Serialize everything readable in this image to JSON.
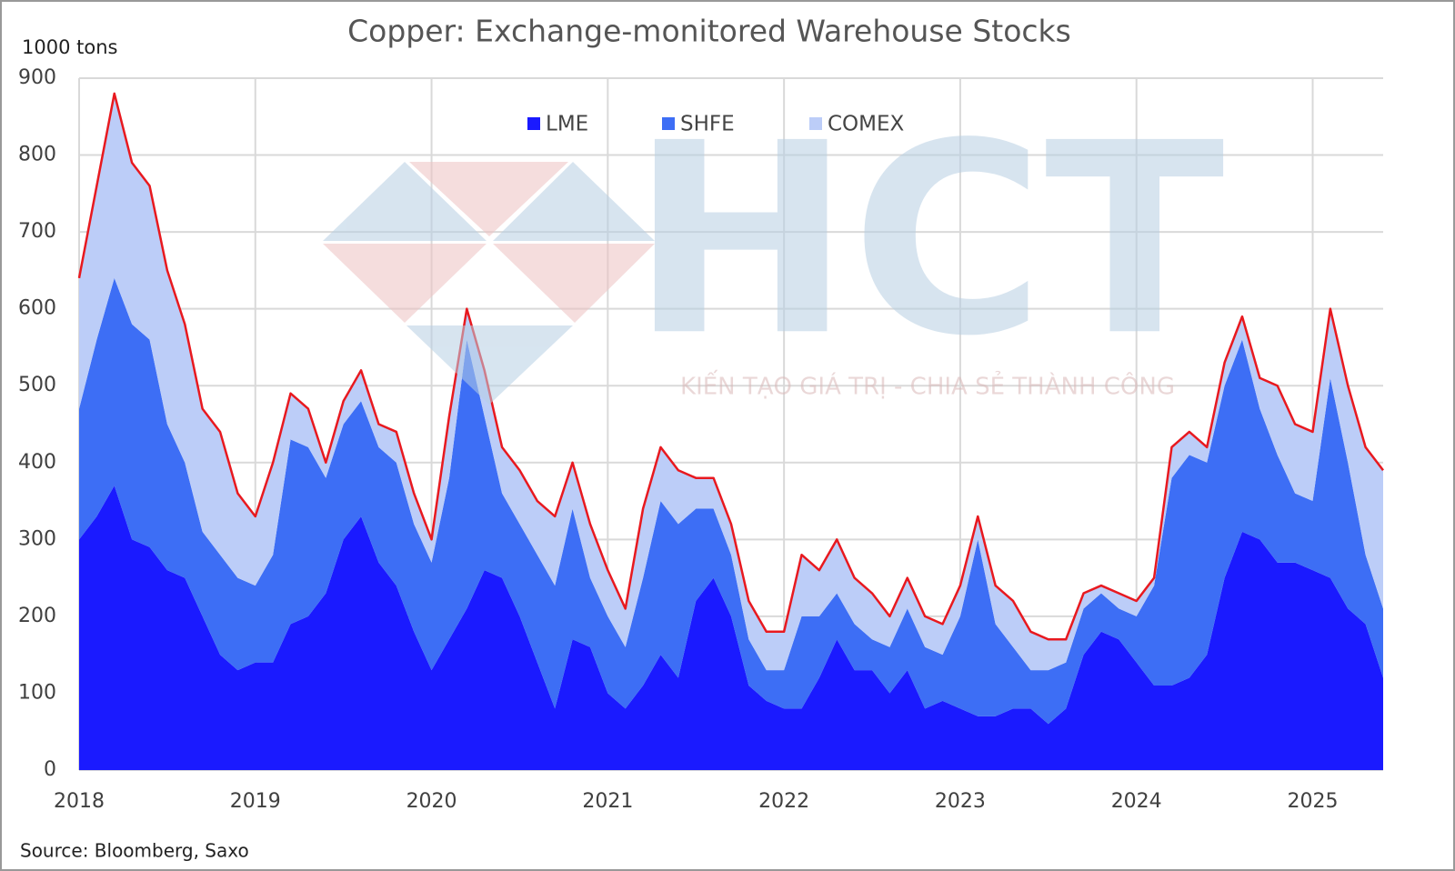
{
  "chart_data": {
    "type": "stacked_area",
    "title": "Copper: Exchange-monitored Warehouse Stocks",
    "y_axis_label": "1000 tons",
    "source": "Source: Bloomberg, Saxo",
    "x": [
      2018,
      2018.1,
      2018.2,
      2018.3,
      2018.4,
      2018.5,
      2018.6,
      2018.7,
      2018.8,
      2018.9,
      2019,
      2019.1,
      2019.2,
      2019.3,
      2019.4,
      2019.5,
      2019.6,
      2019.7,
      2019.8,
      2019.9,
      2020,
      2020.1,
      2020.2,
      2020.3,
      2020.4,
      2020.5,
      2020.6,
      2020.7,
      2020.8,
      2020.9,
      2021,
      2021.1,
      2021.2,
      2021.3,
      2021.4,
      2021.5,
      2021.6,
      2021.7,
      2021.8,
      2021.9,
      2022,
      2022.1,
      2022.2,
      2022.3,
      2022.4,
      2022.5,
      2022.6,
      2022.7,
      2022.8,
      2022.9,
      2023,
      2023.1,
      2023.2,
      2023.3,
      2023.4,
      2023.5,
      2023.6,
      2023.7,
      2023.8,
      2023.9,
      2024,
      2024.1,
      2024.2,
      2024.3,
      2024.4,
      2024.5,
      2024.6,
      2024.7,
      2024.8,
      2024.9,
      2025,
      2025.1,
      2025.2,
      2025.3,
      2025.4
    ],
    "series": [
      {
        "name": "LME",
        "color": "#1a1aff",
        "values": [
          300,
          330,
          370,
          300,
          290,
          260,
          250,
          200,
          150,
          130,
          140,
          140,
          190,
          200,
          230,
          300,
          330,
          270,
          240,
          180,
          130,
          170,
          210,
          260,
          250,
          200,
          140,
          80,
          170,
          160,
          100,
          80,
          110,
          150,
          120,
          220,
          250,
          200,
          110,
          90,
          80,
          80,
          120,
          170,
          130,
          130,
          100,
          130,
          80,
          90,
          80,
          70,
          70,
          80,
          80,
          60,
          80,
          150,
          180,
          170,
          140,
          110,
          110,
          120,
          150,
          250,
          310,
          300,
          270,
          270,
          260,
          250,
          210,
          190,
          120
        ]
      },
      {
        "name": "SHFE",
        "color": "#3d6ef5",
        "values": [
          170,
          230,
          270,
          280,
          270,
          190,
          150,
          110,
          130,
          120,
          100,
          140,
          240,
          220,
          150,
          150,
          150,
          150,
          160,
          140,
          140,
          210,
          350,
          200,
          110,
          120,
          140,
          160,
          170,
          90,
          100,
          80,
          140,
          200,
          200,
          120,
          90,
          80,
          60,
          40,
          50,
          120,
          80,
          60,
          60,
          40,
          60,
          80,
          80,
          60,
          120,
          230,
          120,
          80,
          50,
          70,
          60,
          60,
          50,
          40,
          60,
          130,
          270,
          290,
          250,
          250,
          250,
          170,
          140,
          90,
          90,
          260,
          190,
          90,
          90
        ]
      },
      {
        "name": "COMEX",
        "color": "#bccdf8",
        "values": [
          170,
          200,
          240,
          210,
          200,
          200,
          180,
          160,
          160,
          110,
          90,
          120,
          60,
          50,
          20,
          30,
          40,
          30,
          40,
          40,
          30,
          80,
          40,
          60,
          60,
          70,
          70,
          90,
          60,
          70,
          60,
          50,
          90,
          70,
          70,
          40,
          40,
          40,
          50,
          50,
          50,
          80,
          60,
          70,
          60,
          60,
          40,
          40,
          40,
          40,
          40,
          30,
          50,
          60,
          50,
          40,
          30,
          20,
          10,
          20,
          20,
          10,
          40,
          30,
          20,
          30,
          30,
          40,
          90,
          90,
          90,
          90,
          100,
          140,
          180
        ]
      }
    ],
    "total_line_color": "#e8191f",
    "xlim": [
      2018,
      2025.4
    ],
    "xticks": [
      2018,
      2019,
      2020,
      2021,
      2022,
      2023,
      2024,
      2025
    ],
    "ylim": [
      0,
      900
    ],
    "yticks": [
      0,
      100,
      200,
      300,
      400,
      500,
      600,
      700,
      800,
      900
    ],
    "grid": true,
    "legend": "top"
  },
  "watermark": {
    "brand": "HCT",
    "tagline": "KIẾN TẠO GIÁ TRỊ - CHIA SẺ THÀNH CÔNG"
  }
}
